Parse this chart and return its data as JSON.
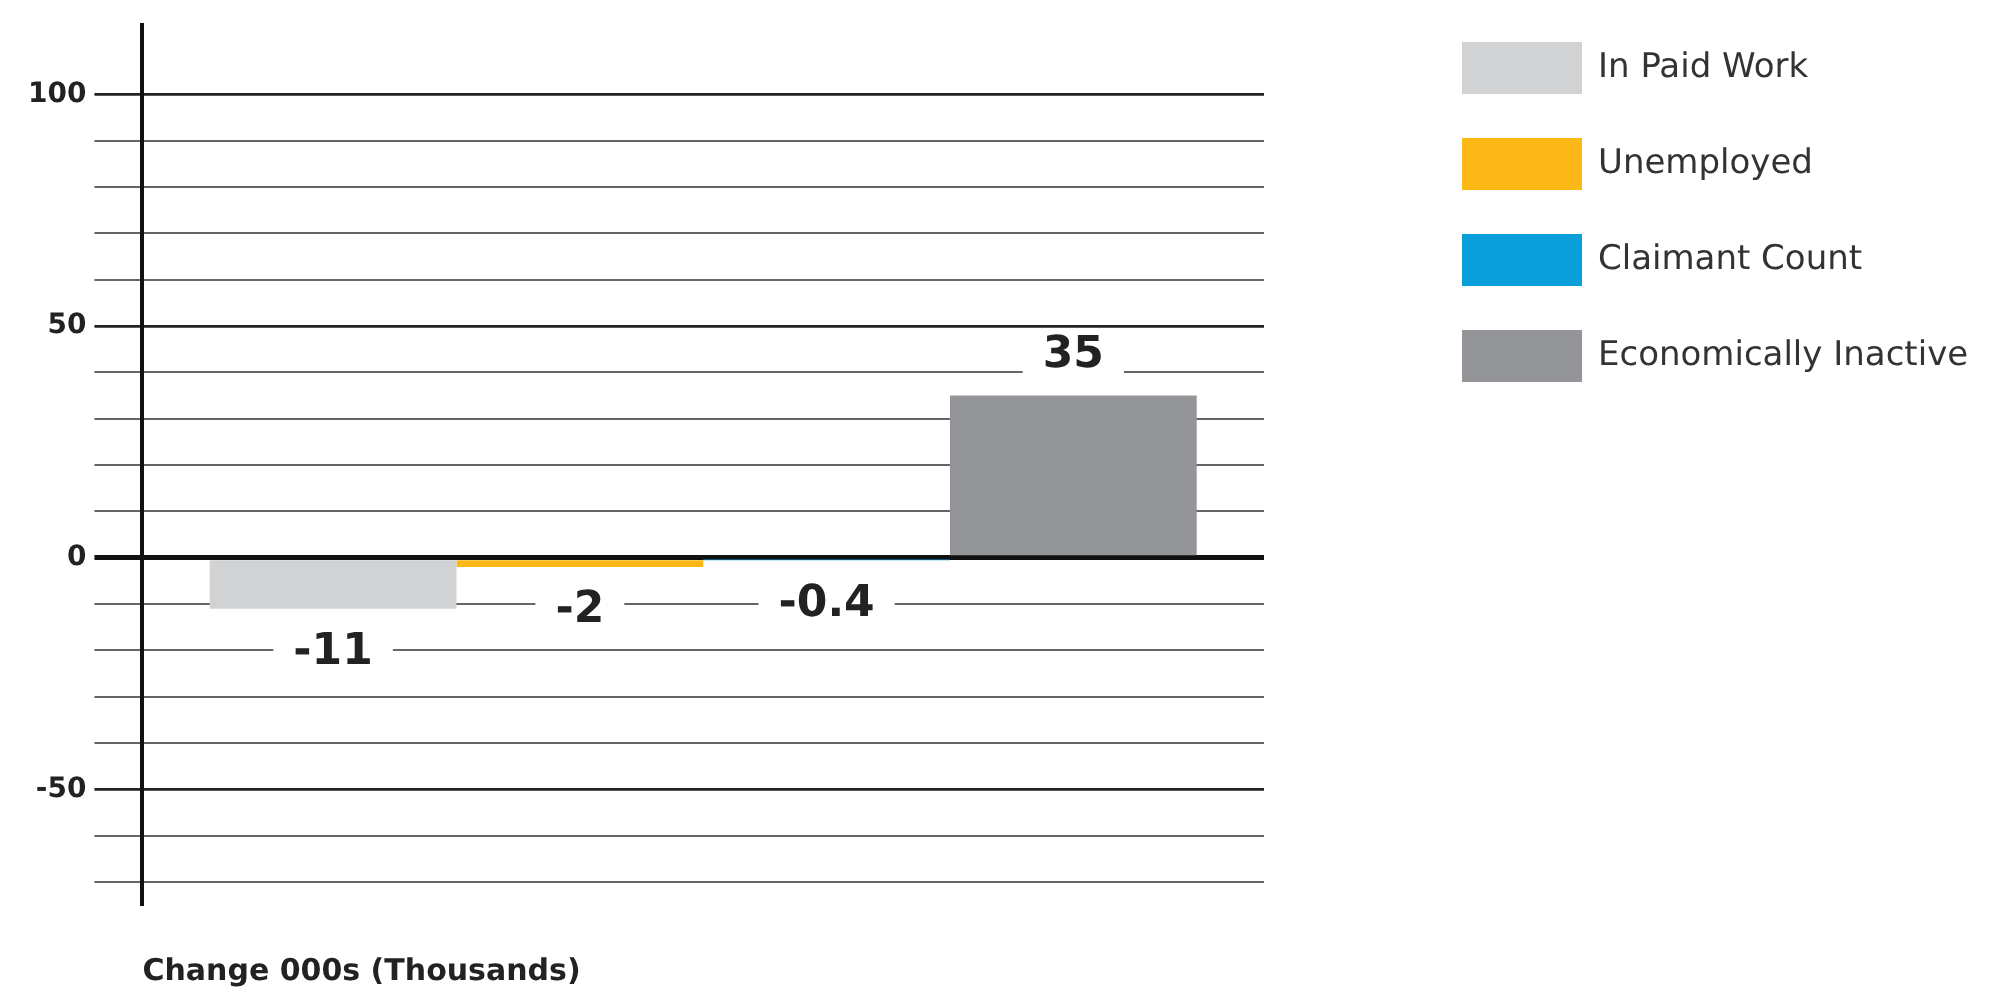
{
  "chart_data": {
    "type": "bar",
    "xlabel": "Change 000s (Thousands)",
    "categories": [
      null
    ],
    "series": [
      {
        "name": "In Paid Work",
        "color": "#d1d2d4",
        "values": [
          -11
        ]
      },
      {
        "name": "Unemployed",
        "color": "#fbb817",
        "values": [
          -2
        ]
      },
      {
        "name": "Claimant Count",
        "color": "#0a9fdb",
        "values": [
          -0.4
        ]
      },
      {
        "name": "Economically Inactive",
        "color": "#939598",
        "values": [
          35
        ]
      }
    ],
    "ylim": [
      -75,
      115
    ],
    "yticks": [
      {
        "value": -70,
        "label": null
      },
      {
        "value": -60,
        "label": null
      },
      -50,
      {
        "value": -40,
        "label": null
      },
      {
        "value": -30,
        "label": null
      },
      {
        "value": -20,
        "label": null
      },
      {
        "value": -10,
        "label": null
      },
      0,
      {
        "value": 10,
        "label": null
      },
      {
        "value": 20,
        "label": null
      },
      {
        "value": 30,
        "label": null
      },
      {
        "value": 40,
        "label": null
      },
      50,
      {
        "value": 60,
        "label": null
      },
      {
        "value": 70,
        "label": null
      },
      {
        "value": 80,
        "label": null
      },
      {
        "value": 90,
        "label": null
      },
      100
    ],
    "grid": "y",
    "legend": "right",
    "data_labels": true
  }
}
